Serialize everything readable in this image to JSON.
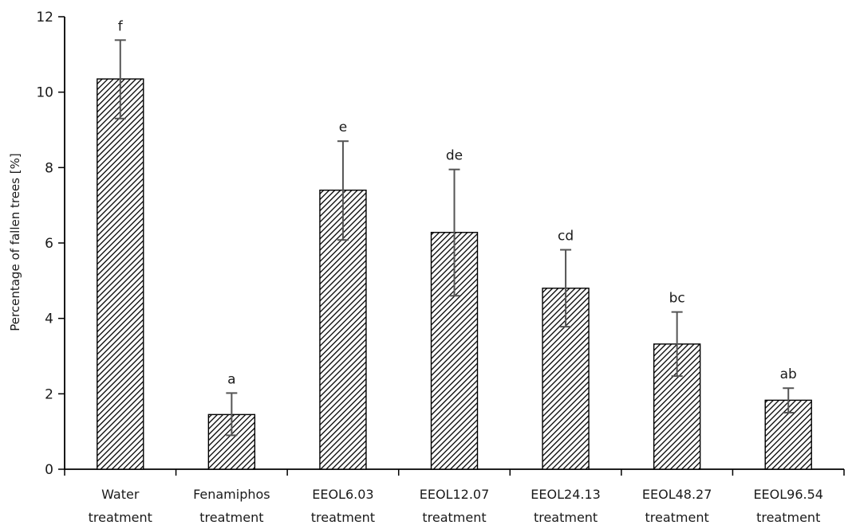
{
  "chart_data": {
    "type": "bar",
    "title": "",
    "xlabel": "",
    "ylabel": "Percentage of fallen trees [%]",
    "ylim": [
      0,
      12
    ],
    "yticks": [
      0,
      2,
      4,
      6,
      8,
      10,
      12
    ],
    "grid": false,
    "legend": "none",
    "bar_pattern": "diagonal-hatch",
    "categories": [
      [
        "Water",
        "treatment"
      ],
      [
        "Fenamiphos",
        "treatment"
      ],
      [
        "EEOL6.03",
        "treatment"
      ],
      [
        "EEOL12.07",
        "treatment"
      ],
      [
        "EEOL24.13",
        "treatment"
      ],
      [
        "EEOL48.27",
        "treatment"
      ],
      [
        "EEOL96.54",
        "treatment"
      ]
    ],
    "values": [
      10.35,
      1.45,
      7.4,
      6.28,
      4.8,
      3.32,
      1.83
    ],
    "error_low": [
      9.3,
      0.9,
      6.08,
      4.6,
      3.78,
      2.47,
      1.5
    ],
    "error_high": [
      11.38,
      2.02,
      8.7,
      7.95,
      5.82,
      4.17,
      2.15
    ],
    "letters": [
      "f",
      "a",
      "e",
      "de",
      "cd",
      "bc",
      "ab"
    ]
  }
}
